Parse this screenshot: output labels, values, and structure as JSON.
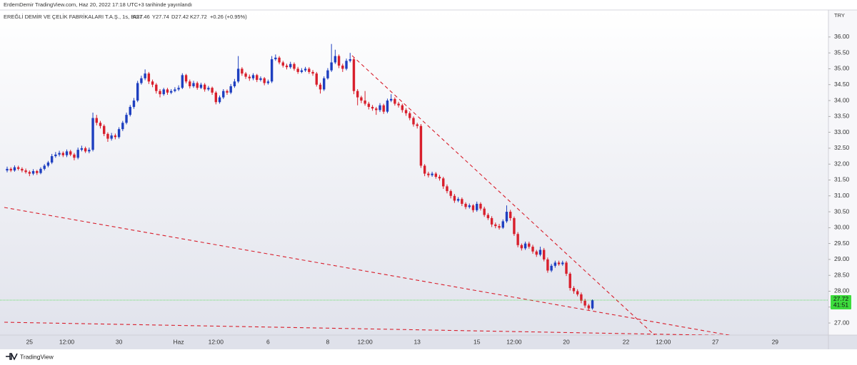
{
  "header": {
    "publisher": "ErdemDemir TradingView.com, Haz 20, 2022 17:18 UTC+3 tarihinde yayınlandı"
  },
  "footer": {
    "brand": "TradingView"
  },
  "chart_data": {
    "type": "candlestick",
    "symbol": "EREĞLİ DEMİR VE ÇELİK FABRİKALARI T.A.Ş., 1s, BIST",
    "ohlc_labels": [
      "A27.46",
      "Y27.74",
      "D27.42",
      "K27.72"
    ],
    "change": "+0.26 (+0.95%)",
    "currency": "TRY",
    "countdown": "41:51",
    "up_color": "#1e3fc0",
    "down_color": "#d81f2c",
    "price_line_color": "#3ddc3d",
    "ylim": [
      26.62,
      36.85
    ],
    "yticks": [
      {
        "value": 27,
        "label": "27.00"
      },
      {
        "value": 27.5,
        "label": "27.50"
      },
      {
        "value": 28,
        "label": "28.00"
      },
      {
        "value": 28.5,
        "label": "28.50"
      },
      {
        "value": 29,
        "label": "29.00"
      },
      {
        "value": 29.5,
        "label": "29.50"
      },
      {
        "value": 30,
        "label": "30.00"
      },
      {
        "value": 30.5,
        "label": "30.50"
      },
      {
        "value": 31,
        "label": "31.00"
      },
      {
        "value": 31.5,
        "label": "31.50"
      },
      {
        "value": 32,
        "label": "32.00"
      },
      {
        "value": 32.5,
        "label": "32.50"
      },
      {
        "value": 33,
        "label": "33.00"
      },
      {
        "value": 33.5,
        "label": "33.50"
      },
      {
        "value": 34,
        "label": "34.00"
      },
      {
        "value": 34.5,
        "label": "34.50"
      },
      {
        "value": 35,
        "label": "35.00"
      },
      {
        "value": 35.5,
        "label": "35.50"
      },
      {
        "value": 36,
        "label": "36.00"
      }
    ],
    "categories": [
      null,
      null,
      null,
      null,
      null,
      null,
      "25",
      null,
      null,
      null,
      null,
      null,
      null,
      null,
      null,
      null,
      "12:00",
      null,
      null,
      null,
      null,
      null,
      null,
      null,
      null,
      null,
      null,
      null,
      null,
      null,
      "30",
      null,
      null,
      null,
      null,
      null,
      null,
      null,
      null,
      null,
      null,
      null,
      null,
      null,
      null,
      null,
      "Haz",
      null,
      null,
      null,
      null,
      null,
      null,
      null,
      null,
      null,
      "12:00",
      null,
      null,
      null,
      null,
      null,
      null,
      null,
      null,
      null,
      null,
      null,
      null,
      null,
      "6",
      null,
      null,
      null,
      null,
      null,
      null,
      null,
      null,
      null,
      null,
      null,
      null,
      null,
      null,
      null,
      "8",
      null,
      null,
      null,
      null,
      null,
      null,
      null,
      null,
      null,
      "12:00",
      null,
      null,
      null,
      null,
      null,
      null,
      null,
      null,
      null,
      null,
      null,
      null,
      null,
      "13",
      null,
      null,
      null,
      null,
      null,
      null,
      null,
      null,
      null,
      null,
      null,
      null,
      null,
      null,
      null,
      "15",
      null,
      null,
      null,
      null,
      null,
      null,
      null,
      null,
      null,
      "12:00",
      null,
      null,
      null,
      null,
      null,
      null,
      null,
      null,
      null,
      null,
      null,
      null,
      null,
      "20",
      null,
      null,
      null,
      null,
      null,
      null,
      null,
      null,
      null,
      null,
      null,
      null,
      null,
      null,
      null,
      "22",
      null,
      null,
      null,
      null,
      null,
      null,
      null,
      null,
      null,
      "12:00",
      null,
      null,
      null,
      null,
      null,
      null,
      null,
      null,
      null,
      null,
      null,
      null,
      null,
      "27",
      null,
      null,
      null,
      null,
      null,
      null,
      null,
      null,
      null,
      null,
      null,
      null,
      null,
      null,
      null,
      "29",
      null,
      null,
      null,
      null,
      null,
      null,
      null,
      null,
      null,
      null,
      null,
      null,
      null
    ],
    "open": [
      31.8,
      31.85,
      31.8,
      31.9,
      31.85,
      31.8,
      31.75,
      31.7,
      31.78,
      31.72,
      31.85,
      31.95,
      32.05,
      32.25,
      32.3,
      32.35,
      32.28,
      32.4,
      32.3,
      32.2,
      32.45,
      32.5,
      32.4,
      32.45,
      33.45,
      33.3,
      33.2,
      32.95,
      32.8,
      32.9,
      32.85,
      33.1,
      33.3,
      33.55,
      33.8,
      34.0,
      34.55,
      34.7,
      34.85,
      34.6,
      34.5,
      34.3,
      34.2,
      34.35,
      34.25,
      34.3,
      34.35,
      34.4,
      34.8,
      34.6,
      34.45,
      34.55,
      34.4,
      34.5,
      34.35,
      34.4,
      34.25,
      33.95,
      34.1,
      34.3,
      34.25,
      34.45,
      34.6,
      35.0,
      34.85,
      34.75,
      34.7,
      34.8,
      34.65,
      34.7,
      34.55,
      34.6,
      35.3,
      35.35,
      35.2,
      35.1,
      35.05,
      35.15,
      35.0,
      34.9,
      34.95,
      35.0,
      34.9,
      34.85,
      34.5,
      34.35,
      34.7,
      34.95,
      35.2,
      35.4,
      35.1,
      35.0,
      35.25,
      35.3,
      34.3,
      34.1,
      34.0,
      33.9,
      33.8,
      33.75,
      33.7,
      33.85,
      33.65,
      34.0,
      34.05,
      33.9,
      33.85,
      33.7,
      33.6,
      33.45,
      33.25,
      33.2,
      31.95,
      31.7,
      31.65,
      31.7,
      31.6,
      31.55,
      31.3,
      31.15,
      31.0,
      30.85,
      30.9,
      30.75,
      30.65,
      30.7,
      30.55,
      30.75,
      30.6,
      30.4,
      30.3,
      30.1,
      30.05,
      30.0,
      30.2,
      30.5,
      30.3,
      29.8,
      29.45,
      29.35,
      29.5,
      29.4,
      29.25,
      29.15,
      29.3,
      29.0,
      28.65,
      28.8,
      28.9,
      28.85,
      28.9,
      28.55,
      28.1,
      28.0,
      27.9,
      27.7,
      27.55,
      27.46,
      null,
      null,
      null,
      null,
      null,
      null,
      null,
      null,
      null,
      null,
      null,
      null,
      null,
      null,
      null,
      null,
      null,
      null,
      null,
      null,
      null,
      null,
      null,
      null,
      null,
      null,
      null,
      null,
      null,
      null,
      null,
      null,
      null,
      null,
      null,
      null,
      null,
      null,
      null,
      null,
      null,
      null,
      null,
      null,
      null,
      null,
      null,
      null,
      null,
      null,
      null,
      null,
      null,
      null,
      null,
      null,
      null,
      null,
      null,
      null,
      null,
      null
    ],
    "high": [
      31.92,
      31.9,
      31.96,
      31.95,
      31.9,
      31.86,
      31.8,
      31.84,
      31.82,
      31.9,
      32.0,
      32.1,
      32.32,
      32.38,
      32.42,
      32.4,
      32.46,
      32.45,
      32.35,
      32.52,
      32.58,
      32.55,
      32.52,
      33.62,
      33.55,
      33.36,
      33.25,
      33.0,
      32.98,
      32.96,
      33.16,
      33.36,
      33.62,
      33.86,
      34.08,
      34.62,
      34.78,
      34.98,
      34.9,
      34.66,
      34.55,
      34.36,
      34.4,
      34.4,
      34.36,
      34.42,
      34.48,
      34.86,
      34.84,
      34.66,
      34.62,
      34.6,
      34.56,
      34.55,
      34.46,
      34.44,
      34.3,
      34.16,
      34.36,
      34.35,
      34.52,
      34.68,
      35.4,
      35.05,
      34.9,
      34.82,
      34.86,
      34.84,
      34.76,
      34.74,
      34.66,
      35.4,
      35.45,
      35.4,
      35.25,
      35.16,
      35.22,
      35.2,
      35.06,
      35.02,
      35.06,
      35.05,
      34.96,
      34.9,
      34.56,
      34.76,
      35.02,
      35.78,
      35.6,
      35.45,
      35.16,
      35.32,
      35.5,
      35.35,
      34.36,
      34.15,
      34.3,
      33.96,
      33.86,
      33.8,
      33.92,
      33.9,
      34.06,
      34.2,
      34.1,
      33.96,
      33.9,
      33.76,
      33.66,
      33.5,
      33.3,
      33.26,
      32.0,
      31.76,
      31.76,
      31.75,
      31.66,
      31.6,
      31.36,
      31.2,
      31.06,
      30.96,
      30.95,
      30.8,
      30.76,
      30.74,
      30.82,
      30.8,
      30.66,
      30.46,
      30.36,
      30.16,
      30.12,
      30.26,
      30.7,
      30.56,
      30.35,
      29.86,
      29.5,
      29.56,
      29.56,
      29.46,
      29.3,
      29.4,
      29.36,
      29.06,
      28.86,
      28.96,
      28.96,
      28.96,
      28.95,
      28.6,
      28.16,
      28.06,
      27.96,
      27.76,
      27.6,
      27.74,
      null,
      null,
      null,
      null,
      null,
      null,
      null,
      null,
      null,
      null,
      null,
      null,
      null,
      null,
      null,
      null,
      null,
      null,
      null,
      null,
      null,
      null,
      null,
      null,
      null,
      null,
      null,
      null,
      null,
      null,
      null,
      null,
      null,
      null,
      null,
      null,
      null,
      null,
      null,
      null,
      null,
      null,
      null,
      null,
      null,
      null,
      null,
      null,
      null,
      null,
      null,
      null,
      null,
      null,
      null,
      null,
      null,
      null,
      null,
      null,
      null,
      null
    ],
    "low": [
      31.74,
      31.75,
      31.76,
      31.8,
      31.74,
      31.7,
      31.62,
      31.65,
      31.66,
      31.68,
      31.8,
      31.9,
      32.0,
      32.2,
      32.24,
      32.22,
      32.22,
      32.25,
      32.12,
      32.15,
      32.4,
      32.35,
      32.34,
      32.4,
      33.22,
      33.12,
      32.88,
      32.7,
      32.74,
      32.78,
      32.8,
      33.04,
      33.25,
      33.5,
      33.74,
      33.95,
      34.5,
      34.64,
      34.52,
      34.42,
      34.22,
      34.1,
      34.15,
      34.18,
      34.2,
      34.26,
      34.3,
      34.36,
      34.54,
      34.38,
      34.4,
      34.34,
      34.36,
      34.28,
      34.3,
      34.18,
      33.88,
      33.9,
      34.05,
      34.18,
      34.2,
      34.4,
      34.55,
      34.78,
      34.68,
      34.62,
      34.64,
      34.58,
      34.6,
      34.48,
      34.5,
      34.55,
      35.25,
      35.14,
      35.04,
      34.98,
      35.0,
      34.94,
      34.84,
      34.86,
      34.9,
      34.84,
      34.78,
      34.44,
      34.22,
      34.3,
      34.66,
      34.9,
      35.15,
      35.02,
      34.9,
      34.95,
      35.2,
      34.2,
      33.85,
      33.92,
      33.84,
      33.72,
      33.68,
      33.55,
      33.64,
      33.58,
      33.6,
      33.95,
      33.84,
      33.78,
      33.62,
      33.52,
      33.38,
      33.18,
      33.12,
      31.88,
      31.62,
      31.58,
      31.6,
      31.54,
      31.48,
      31.22,
      31.08,
      30.92,
      30.78,
      30.8,
      30.68,
      30.58,
      30.6,
      30.48,
      30.5,
      30.54,
      30.34,
      30.24,
      30.02,
      29.98,
      29.94,
      29.96,
      30.15,
      30.22,
      29.74,
      29.38,
      29.28,
      29.3,
      29.34,
      29.18,
      29.08,
      29.1,
      28.94,
      28.58,
      28.6,
      28.74,
      28.8,
      28.8,
      28.48,
      28.02,
      27.92,
      27.84,
      27.62,
      27.48,
      27.4,
      27.42,
      null,
      null,
      null,
      null,
      null,
      null,
      null,
      null,
      null,
      null,
      null,
      null,
      null,
      null,
      null,
      null,
      null,
      null,
      null,
      null,
      null,
      null,
      null,
      null,
      null,
      null,
      null,
      null,
      null,
      null,
      null,
      null,
      null,
      null,
      null,
      null,
      null,
      null,
      null,
      null,
      null,
      null,
      null,
      null,
      null,
      null,
      null,
      null,
      null,
      null,
      null,
      null,
      null,
      null,
      null,
      null,
      null,
      null,
      null,
      null,
      null,
      null
    ],
    "close": [
      31.85,
      31.8,
      31.9,
      31.85,
      31.8,
      31.75,
      31.7,
      31.78,
      31.72,
      31.85,
      31.95,
      32.05,
      32.25,
      32.3,
      32.35,
      32.28,
      32.4,
      32.3,
      32.2,
      32.45,
      32.5,
      32.4,
      32.45,
      33.45,
      33.3,
      33.2,
      32.95,
      32.8,
      32.9,
      32.85,
      33.1,
      33.3,
      33.55,
      33.8,
      34.0,
      34.55,
      34.7,
      34.85,
      34.6,
      34.5,
      34.3,
      34.2,
      34.35,
      34.25,
      34.3,
      34.35,
      34.4,
      34.8,
      34.6,
      34.45,
      34.55,
      34.4,
      34.5,
      34.35,
      34.4,
      34.25,
      33.95,
      34.1,
      34.3,
      34.25,
      34.45,
      34.6,
      35.0,
      34.85,
      34.75,
      34.7,
      34.8,
      34.65,
      34.7,
      34.55,
      34.6,
      35.3,
      35.35,
      35.2,
      35.1,
      35.05,
      35.15,
      35.0,
      34.9,
      34.95,
      35.0,
      34.9,
      34.85,
      34.5,
      34.35,
      34.7,
      34.95,
      35.2,
      35.4,
      35.1,
      35.0,
      35.25,
      35.3,
      34.3,
      34.1,
      34.0,
      33.9,
      33.8,
      33.75,
      33.7,
      33.85,
      33.65,
      34.0,
      34.05,
      33.9,
      33.85,
      33.7,
      33.6,
      33.45,
      33.25,
      33.2,
      31.95,
      31.7,
      31.65,
      31.7,
      31.6,
      31.55,
      31.3,
      31.15,
      31.0,
      30.85,
      30.9,
      30.75,
      30.65,
      30.7,
      30.55,
      30.75,
      30.6,
      30.4,
      30.3,
      30.1,
      30.05,
      30.0,
      30.2,
      30.5,
      30.3,
      29.8,
      29.45,
      29.35,
      29.5,
      29.4,
      29.25,
      29.15,
      29.3,
      29.0,
      28.65,
      28.8,
      28.9,
      28.85,
      28.9,
      28.55,
      28.1,
      28.0,
      27.9,
      27.7,
      27.55,
      27.46,
      27.72,
      null,
      null,
      null,
      null,
      null,
      null,
      null,
      null,
      null,
      null,
      null,
      null,
      null,
      null,
      null,
      null,
      null,
      null,
      null,
      null,
      null,
      null,
      null,
      null,
      null,
      null,
      null,
      null,
      null,
      null,
      null,
      null,
      null,
      null,
      null,
      null,
      null,
      null,
      null,
      null,
      null,
      null,
      null,
      null,
      null,
      null,
      null,
      null,
      null,
      null,
      null,
      null,
      null,
      null,
      null,
      null,
      null,
      null,
      null,
      null,
      null,
      null
    ]
  }
}
